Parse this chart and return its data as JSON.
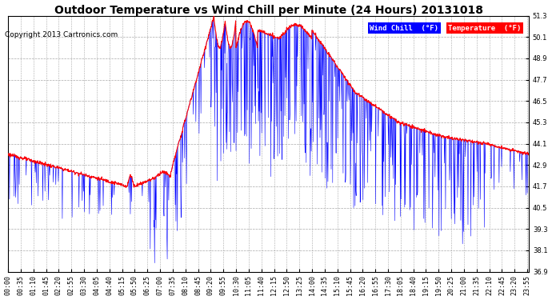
{
  "title": "Outdoor Temperature vs Wind Chill per Minute (24 Hours) 20131018",
  "copyright": "Copyright 2013 Cartronics.com",
  "legend_wind_chill": "Wind Chill  (°F)",
  "legend_temperature": "Temperature  (°F)",
  "wind_chill_color": "#0000FF",
  "temperature_color": "#FF0000",
  "legend_wc_bg": "#0000FF",
  "legend_temp_bg": "#FF0000",
  "background_color": "#FFFFFF",
  "plot_bg_color": "#FFFFFF",
  "grid_color": "#AAAAAA",
  "ylim_min": 36.9,
  "ylim_max": 51.3,
  "ytick_values": [
    36.9,
    38.1,
    39.3,
    40.5,
    41.7,
    42.9,
    44.1,
    45.3,
    46.5,
    47.7,
    48.9,
    50.1,
    51.3
  ],
  "title_fontsize": 10,
  "copyright_fontsize": 6.5,
  "tick_fontsize": 6,
  "num_minutes": 1440,
  "tick_interval_minutes": 35
}
